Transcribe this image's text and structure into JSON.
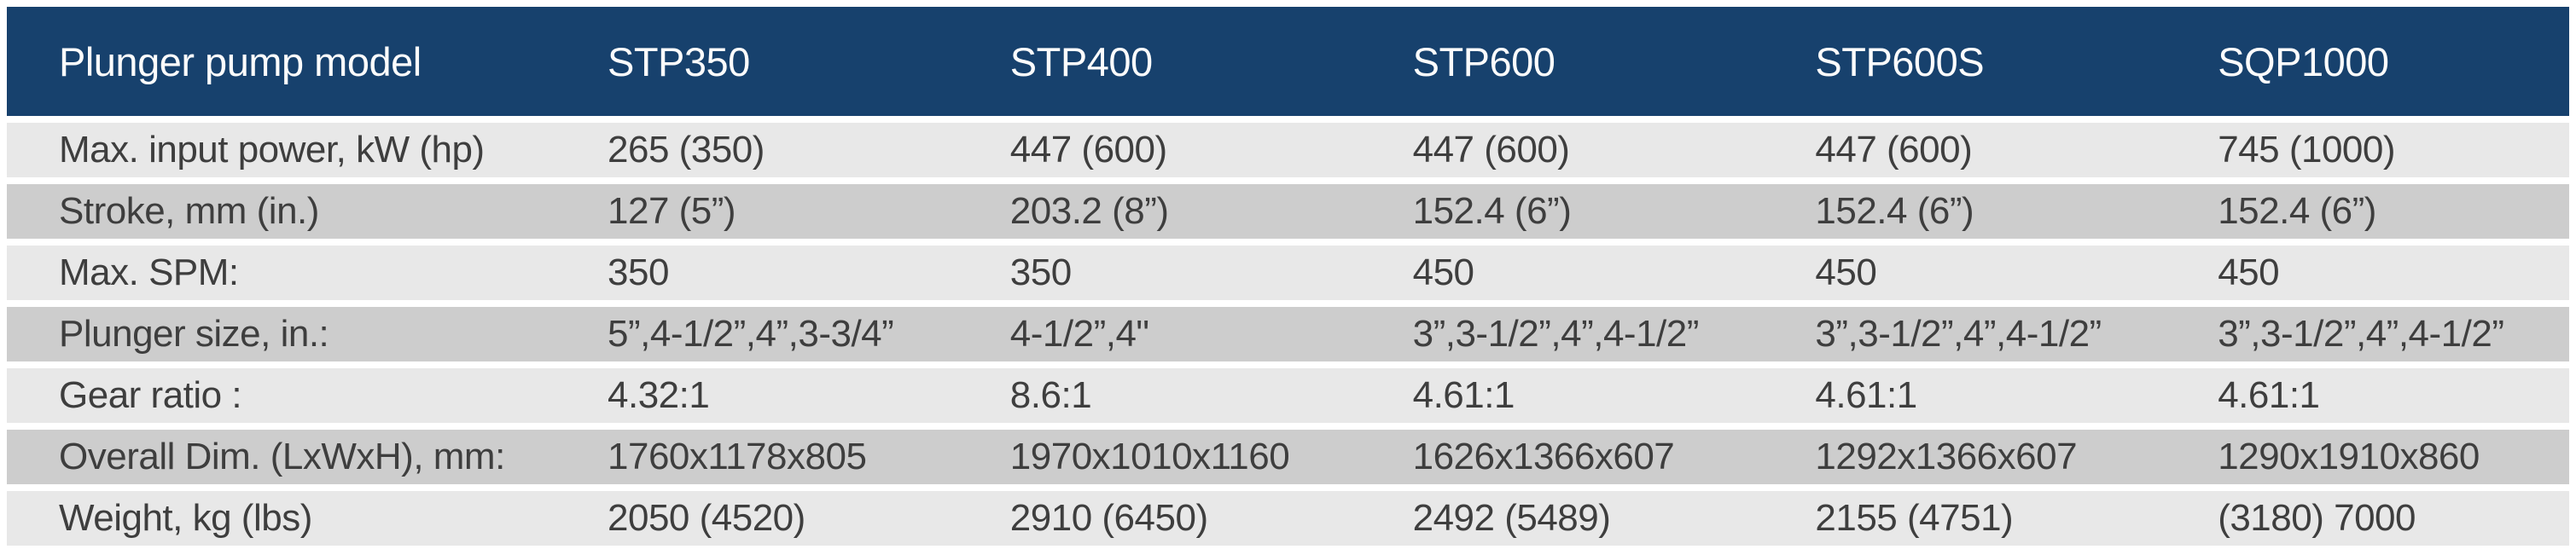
{
  "colors": {
    "header_bg": "#17416d",
    "header_text": "#fcfcfc",
    "row_dark_bg": "#cdcdcd",
    "row_light_bg": "#e8e8e8",
    "cell_text": "#3e3e3e",
    "gap": "#ffffff"
  },
  "table": {
    "header": {
      "label": "Plunger pump model",
      "models": [
        "STP350",
        "STP400",
        "STP600",
        "STP600S",
        "SQP1000"
      ]
    },
    "rows": [
      {
        "label": "Max. input power, kW (hp)",
        "values": [
          "265 (350)",
          "447 (600)",
          "447 (600)",
          "447 (600)",
          "745 (1000)"
        ]
      },
      {
        "label": "Stroke, mm (in.)",
        "values": [
          "127 (5”)",
          "203.2 (8”)",
          "152.4 (6”)",
          "152.4 (6”)",
          "152.4 (6”)"
        ]
      },
      {
        "label": "Max. SPM:",
        "values": [
          "350",
          "350",
          "450",
          "450",
          "450"
        ]
      },
      {
        "label": "Plunger size, in.:",
        "values": [
          "5”,4-1/2”,4”,3-3/4”",
          "4-1/2”,4\"",
          "3”,3-1/2”,4”,4-1/2”",
          "3”,3-1/2”,4”,4-1/2”",
          "3”,3-1/2”,4”,4-1/2”"
        ]
      },
      {
        "label": "Gear ratio :",
        "values": [
          "4.32:1",
          "8.6:1",
          "4.61:1",
          "4.61:1",
          "4.61:1"
        ]
      },
      {
        "label": "Overall Dim. (LxWxH), mm:",
        "values": [
          "1760x1178x805",
          "1970x1010x1160",
          "1626x1366x607",
          "1292x1366x607",
          "1290x1910x860"
        ]
      },
      {
        "label": "Weight, kg (lbs)",
        "values": [
          "2050 (4520)",
          "2910 (6450)",
          "2492 (5489)",
          "2155 (4751)",
          "(3180) 7000"
        ]
      }
    ]
  },
  "chart_data": {
    "type": "table",
    "columns": [
      "Plunger pump model",
      "STP350",
      "STP400",
      "STP600",
      "STP600S",
      "SQP1000"
    ],
    "rows": [
      [
        "Max. input power, kW (hp)",
        "265 (350)",
        "447 (600)",
        "447 (600)",
        "447 (600)",
        "745 (1000)"
      ],
      [
        "Stroke, mm (in.)",
        "127 (5”)",
        "203.2 (8”)",
        "152.4 (6”)",
        "152.4 (6”)",
        "152.4 (6”)"
      ],
      [
        "Max. SPM:",
        "350",
        "350",
        "450",
        "450",
        "450"
      ],
      [
        "Plunger size, in.:",
        "5”,4-1/2”,4”,3-3/4”",
        "4-1/2”,4\"",
        "3”,3-1/2”,4”,4-1/2”",
        "3”,3-1/2”,4”,4-1/2”",
        "3”,3-1/2”,4”,4-1/2”"
      ],
      [
        "Gear ratio :",
        "4.32:1",
        "8.6:1",
        "4.61:1",
        "4.61:1",
        "4.61:1"
      ],
      [
        "Overall Dim. (LxWxH), mm:",
        "1760x1178x805",
        "1970x1010x1160",
        "1626x1366x607",
        "1292x1366x607",
        "1290x1910x860"
      ],
      [
        "Weight, kg (lbs)",
        "2050 (4520)",
        "2910 (6450)",
        "2492 (5489)",
        "2155 (4751)",
        "(3180) 7000"
      ]
    ]
  }
}
